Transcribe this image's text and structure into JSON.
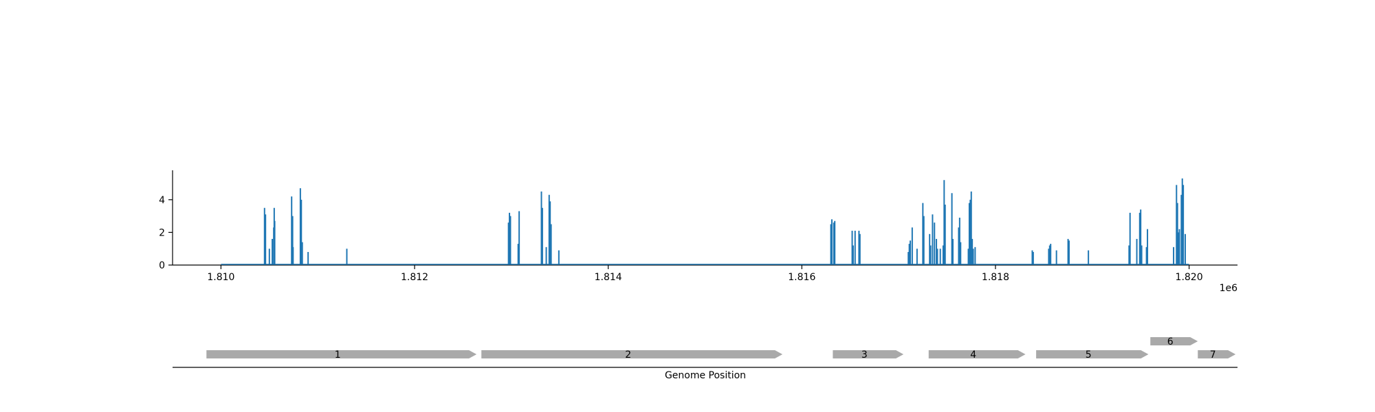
{
  "chart_data": [
    {
      "type": "bar",
      "title": "",
      "xlabel": "",
      "ylabel": "",
      "xlim": [
        1809500,
        1820500
      ],
      "ylim": [
        0,
        5.8
      ],
      "xticks": [
        1810000,
        1812000,
        1814000,
        1816000,
        1818000,
        1820000
      ],
      "xtick_labels": [
        "1.810",
        "1.812",
        "1.814",
        "1.816",
        "1.818",
        "1.820"
      ],
      "x_offset_label": "1e6",
      "yticks": [
        0,
        2,
        4
      ],
      "ytick_labels": [
        "0",
        "2",
        "4"
      ],
      "baseline": [
        1810000,
        1820000
      ],
      "series_color": "#1f77b4",
      "x": [
        1810450,
        1810460,
        1810500,
        1810530,
        1810545,
        1810550,
        1810555,
        1810730,
        1810740,
        1810745,
        1810820,
        1810830,
        1810840,
        1810900,
        1811300,
        1812970,
        1812980,
        1812990,
        1813070,
        1813080,
        1813310,
        1813320,
        1813360,
        1813390,
        1813400,
        1813410,
        1813490,
        1816300,
        1816310,
        1816330,
        1816340,
        1816520,
        1816530,
        1816550,
        1816590,
        1816600,
        1817100,
        1817110,
        1817120,
        1817140,
        1817190,
        1817250,
        1817260,
        1817320,
        1817330,
        1817350,
        1817370,
        1817390,
        1817400,
        1817430,
        1817460,
        1817470,
        1817480,
        1817550,
        1817560,
        1817620,
        1817630,
        1817640,
        1817720,
        1817730,
        1817740,
        1817750,
        1817760,
        1817770,
        1817790,
        1818380,
        1818390,
        1818550,
        1818560,
        1818570,
        1818630,
        1818750,
        1818760,
        1818960,
        1819380,
        1819390,
        1819460,
        1819490,
        1819500,
        1819510,
        1819560,
        1819570,
        1819840,
        1819870,
        1819880,
        1819890,
        1819900,
        1819920,
        1819930,
        1819940,
        1819960
      ],
      "values": [
        3.5,
        3.1,
        1.0,
        1.6,
        2.3,
        3.5,
        2.7,
        4.2,
        3.0,
        1.1,
        4.7,
        4.0,
        1.4,
        0.8,
        1.0,
        2.6,
        3.2,
        3.0,
        1.3,
        3.3,
        4.5,
        3.5,
        1.1,
        4.3,
        3.9,
        2.5,
        0.9,
        2.5,
        2.8,
        2.6,
        2.7,
        2.1,
        1.2,
        2.1,
        2.1,
        1.9,
        0.8,
        1.3,
        1.5,
        2.3,
        1.0,
        3.8,
        3.0,
        1.9,
        1.2,
        3.1,
        2.6,
        1.6,
        1.0,
        1.0,
        1.2,
        5.2,
        3.7,
        4.4,
        1.6,
        2.3,
        2.9,
        1.4,
        1.0,
        3.8,
        4.0,
        4.5,
        1.6,
        1.0,
        1.1,
        0.9,
        0.8,
        1.0,
        1.2,
        1.3,
        0.9,
        1.6,
        1.5,
        0.9,
        1.2,
        3.2,
        1.6,
        3.2,
        3.4,
        1.2,
        1.1,
        2.2,
        1.1,
        4.9,
        3.8,
        2.0,
        2.2,
        4.3,
        5.3,
        4.9,
        1.9
      ]
    },
    {
      "type": "gene-track",
      "xlabel": "Genome Position",
      "feature_color": "#a9a9a9",
      "features": [
        {
          "label": "1",
          "start": 1809850,
          "end": 1812640,
          "row": 0
        },
        {
          "label": "2",
          "start": 1812690,
          "end": 1815800,
          "row": 0
        },
        {
          "label": "3",
          "start": 1816320,
          "end": 1817050,
          "row": 0
        },
        {
          "label": "4",
          "start": 1817310,
          "end": 1818310,
          "row": 0
        },
        {
          "label": "5",
          "start": 1818420,
          "end": 1819580,
          "row": 0
        },
        {
          "label": "6",
          "start": 1819600,
          "end": 1820090,
          "row": 1
        },
        {
          "label": "7",
          "start": 1820090,
          "end": 1820480,
          "row": 0
        }
      ]
    }
  ]
}
